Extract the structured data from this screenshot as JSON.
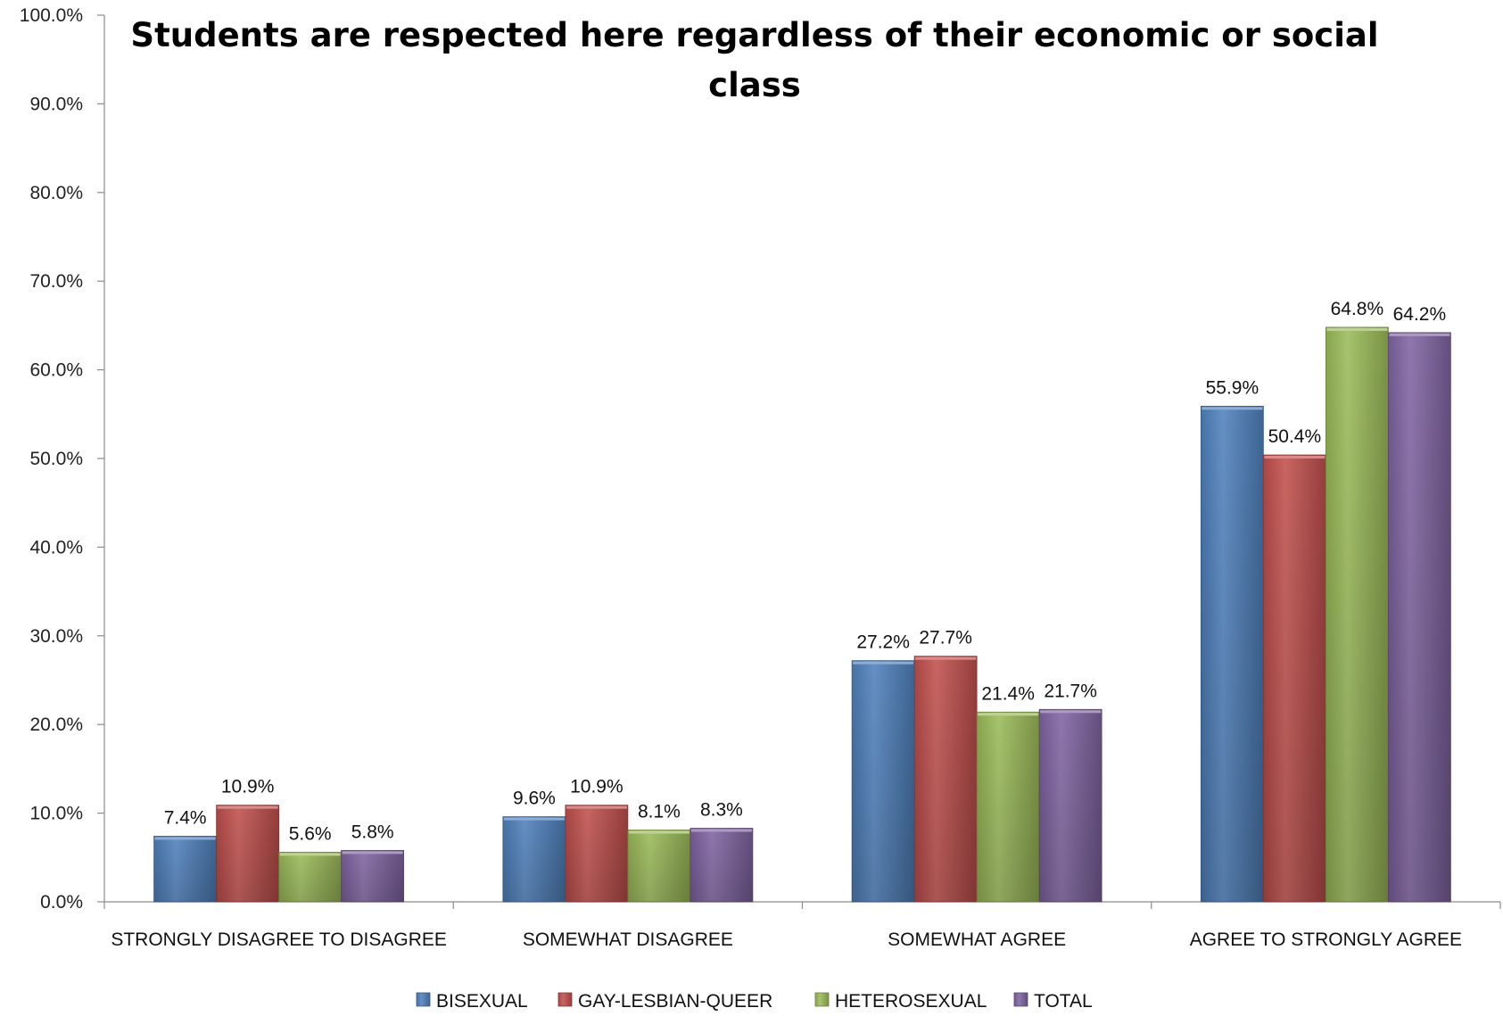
{
  "chart_data": {
    "type": "bar",
    "title": "Students are respected here regardless of their economic or social class",
    "title_lines": [
      "Students are respected here regardless of their economic or social",
      "class"
    ],
    "xlabel": "",
    "ylabel": "",
    "ylim": [
      0,
      100
    ],
    "y_ticks": [
      0,
      10,
      20,
      30,
      40,
      50,
      60,
      70,
      80,
      90,
      100
    ],
    "y_tick_labels": [
      "0.0%",
      "10.0%",
      "20.0%",
      "30.0%",
      "40.0%",
      "50.0%",
      "60.0%",
      "70.0%",
      "80.0%",
      "90.0%",
      "100.0%"
    ],
    "categories": [
      "STRONGLY DISAGREE TO DISAGREE",
      "SOMEWHAT DISAGREE",
      "SOMEWHAT AGREE",
      "AGREE TO STRONGLY AGREE"
    ],
    "series": [
      {
        "name": "BISEXUAL",
        "color": "#4F81BD",
        "values": [
          7.4,
          9.6,
          27.2,
          55.9
        ],
        "labels": [
          "7.4%",
          "9.6%",
          "27.2%",
          "55.9%"
        ]
      },
      {
        "name": "GAY-LESBIAN-QUEER",
        "color": "#C0504D",
        "values": [
          10.9,
          10.9,
          27.7,
          50.4
        ],
        "labels": [
          "10.9%",
          "10.9%",
          "27.7%",
          "50.4%"
        ]
      },
      {
        "name": "HETEROSEXUAL",
        "color": "#9BBB59",
        "values": [
          5.6,
          8.1,
          21.4,
          64.8
        ],
        "labels": [
          "5.6%",
          "8.1%",
          "21.4%",
          "64.8%"
        ]
      },
      {
        "name": "TOTAL",
        "color": "#8064A2",
        "values": [
          5.8,
          8.3,
          21.7,
          64.2
        ],
        "labels": [
          "5.8%",
          "8.3%",
          "21.7%",
          "64.2%"
        ]
      }
    ],
    "grid": false,
    "legend_position": "bottom"
  }
}
